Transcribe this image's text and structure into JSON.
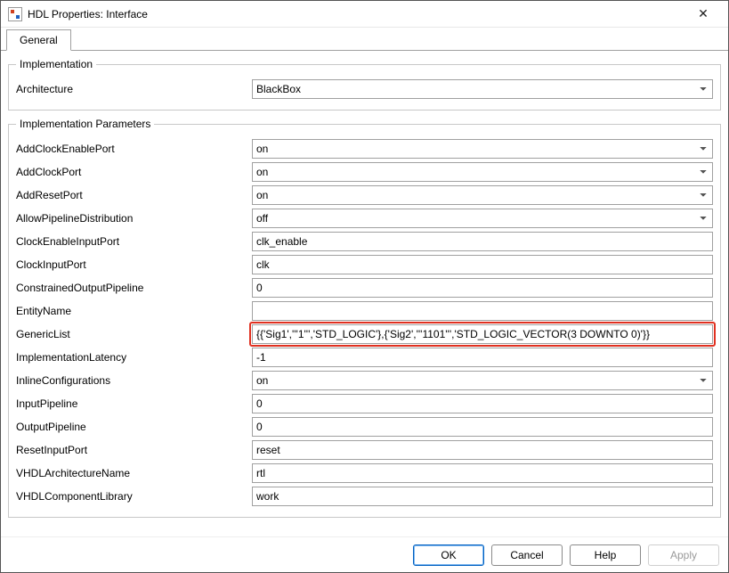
{
  "window": {
    "title": "HDL Properties: Interface"
  },
  "tabs": {
    "general": "General"
  },
  "groups": {
    "implementation": "Implementation",
    "implementation_params": "Implementation Parameters"
  },
  "labels": {
    "architecture": "Architecture",
    "add_clock_enable_port": "AddClockEnablePort",
    "add_clock_port": "AddClockPort",
    "add_reset_port": "AddResetPort",
    "allow_pipeline_distribution": "AllowPipelineDistribution",
    "clock_enable_input_port": "ClockEnableInputPort",
    "clock_input_port": "ClockInputPort",
    "constrained_output_pipeline": "ConstrainedOutputPipeline",
    "entity_name": "EntityName",
    "generic_list": "GenericList",
    "implementation_latency": "ImplementationLatency",
    "inline_configurations": "InlineConfigurations",
    "input_pipeline": "InputPipeline",
    "output_pipeline": "OutputPipeline",
    "reset_input_port": "ResetInputPort",
    "vhdl_architecture_name": "VHDLArchitectureName",
    "vhdl_component_library": "VHDLComponentLibrary"
  },
  "values": {
    "architecture": "BlackBox",
    "add_clock_enable_port": "on",
    "add_clock_port": "on",
    "add_reset_port": "on",
    "allow_pipeline_distribution": "off",
    "clock_enable_input_port": "clk_enable",
    "clock_input_port": "clk",
    "constrained_output_pipeline": "0",
    "entity_name": "",
    "generic_list": "{{'Sig1','''1''','STD_LOGIC'},{'Sig2','''1101''','STD_LOGIC_VECTOR(3 DOWNTO 0)'}}",
    "implementation_latency": "-1",
    "inline_configurations": "on",
    "input_pipeline": "0",
    "output_pipeline": "0",
    "reset_input_port": "reset",
    "vhdl_architecture_name": "rtl",
    "vhdl_component_library": "work"
  },
  "options": {
    "architecture": [
      "BlackBox"
    ],
    "onoff": [
      "on",
      "off"
    ]
  },
  "buttons": {
    "ok": "OK",
    "cancel": "Cancel",
    "help": "Help",
    "apply": "Apply"
  },
  "style": {
    "highlight_color": "#e03020",
    "border_color": "#a0a0a0",
    "background": "#ffffff"
  }
}
